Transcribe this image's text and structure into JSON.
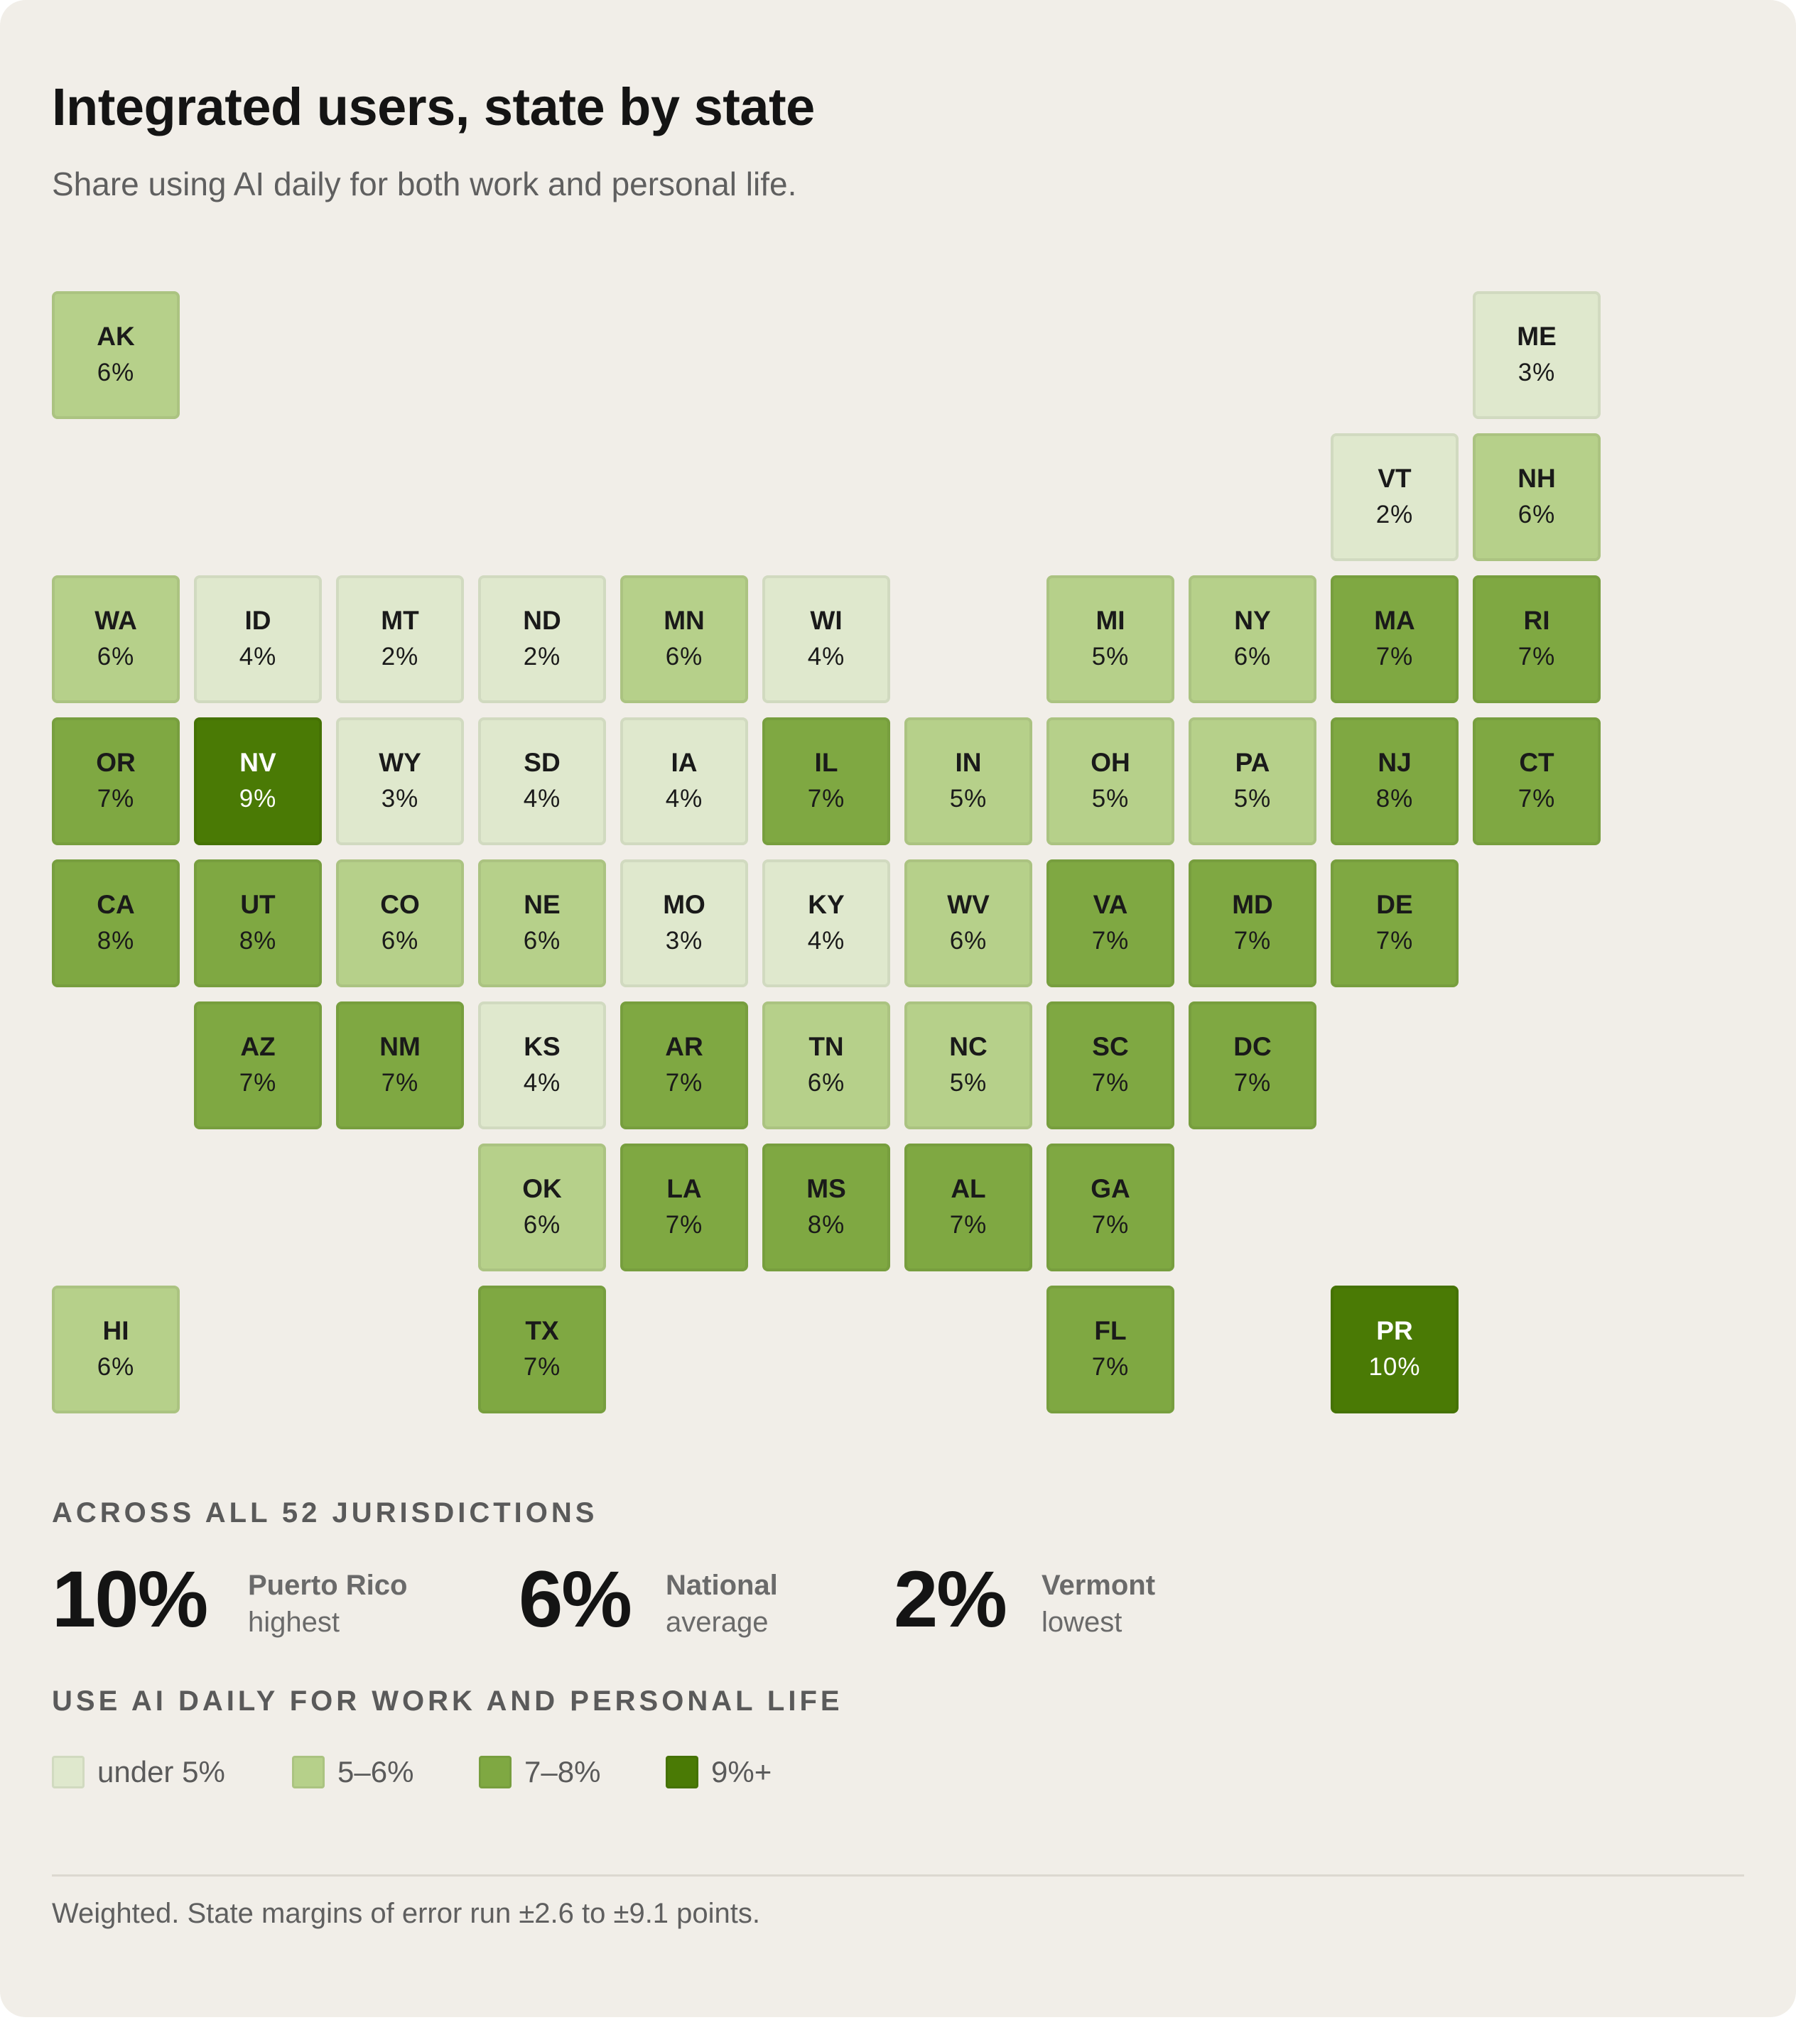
{
  "header": {
    "title": "Integrated users, state by state",
    "subtitle": "Share using AI daily for both work and personal life."
  },
  "colors": {
    "under5": "#dfe8cd",
    "5to6": "#b6d08a",
    "7to8": "#7fa842",
    "9plus": "#4a7a05",
    "text_dark": "#1a1a1a",
    "text_light": "#ffffff"
  },
  "chart_data": {
    "type": "tile-map",
    "title": "Integrated users, state by state",
    "subtitle": "Share using AI daily for both work and personal life.",
    "tiles": [
      {
        "abbr": "AK",
        "label": "6%",
        "value": 6,
        "row": 0,
        "col": 0
      },
      {
        "abbr": "ME",
        "label": "3%",
        "value": 3,
        "row": 0,
        "col": 10
      },
      {
        "abbr": "VT",
        "label": "2%",
        "value": 2,
        "row": 1,
        "col": 9
      },
      {
        "abbr": "NH",
        "label": "6%",
        "value": 6,
        "row": 1,
        "col": 10
      },
      {
        "abbr": "WA",
        "label": "6%",
        "value": 6,
        "row": 2,
        "col": 0
      },
      {
        "abbr": "ID",
        "label": "4%",
        "value": 4,
        "row": 2,
        "col": 1
      },
      {
        "abbr": "MT",
        "label": "2%",
        "value": 2,
        "row": 2,
        "col": 2
      },
      {
        "abbr": "ND",
        "label": "2%",
        "value": 2,
        "row": 2,
        "col": 3
      },
      {
        "abbr": "MN",
        "label": "6%",
        "value": 6,
        "row": 2,
        "col": 4
      },
      {
        "abbr": "WI",
        "label": "4%",
        "value": 4,
        "row": 2,
        "col": 5
      },
      {
        "abbr": "MI",
        "label": "5%",
        "value": 5,
        "row": 2,
        "col": 7
      },
      {
        "abbr": "NY",
        "label": "6%",
        "value": 6,
        "row": 2,
        "col": 8
      },
      {
        "abbr": "MA",
        "label": "7%",
        "value": 7,
        "row": 2,
        "col": 9
      },
      {
        "abbr": "RI",
        "label": "7%",
        "value": 7,
        "row": 2,
        "col": 10
      },
      {
        "abbr": "OR",
        "label": "7%",
        "value": 7,
        "row": 3,
        "col": 0
      },
      {
        "abbr": "NV",
        "label": "9%",
        "value": 9,
        "row": 3,
        "col": 1
      },
      {
        "abbr": "WY",
        "label": "3%",
        "value": 3,
        "row": 3,
        "col": 2
      },
      {
        "abbr": "SD",
        "label": "4%",
        "value": 4,
        "row": 3,
        "col": 3
      },
      {
        "abbr": "IA",
        "label": "4%",
        "value": 4,
        "row": 3,
        "col": 4
      },
      {
        "abbr": "IL",
        "label": "7%",
        "value": 7,
        "row": 3,
        "col": 5
      },
      {
        "abbr": "IN",
        "label": "5%",
        "value": 5,
        "row": 3,
        "col": 6
      },
      {
        "abbr": "OH",
        "label": "5%",
        "value": 5,
        "row": 3,
        "col": 7
      },
      {
        "abbr": "PA",
        "label": "5%",
        "value": 5,
        "row": 3,
        "col": 8
      },
      {
        "abbr": "NJ",
        "label": "8%",
        "value": 8,
        "row": 3,
        "col": 9
      },
      {
        "abbr": "CT",
        "label": "7%",
        "value": 7,
        "row": 3,
        "col": 10
      },
      {
        "abbr": "CA",
        "label": "8%",
        "value": 8,
        "row": 4,
        "col": 0
      },
      {
        "abbr": "UT",
        "label": "8%",
        "value": 8,
        "row": 4,
        "col": 1
      },
      {
        "abbr": "CO",
        "label": "6%",
        "value": 6,
        "row": 4,
        "col": 2
      },
      {
        "abbr": "NE",
        "label": "6%",
        "value": 6,
        "row": 4,
        "col": 3
      },
      {
        "abbr": "MO",
        "label": "3%",
        "value": 3,
        "row": 4,
        "col": 4
      },
      {
        "abbr": "KY",
        "label": "4%",
        "value": 4,
        "row": 4,
        "col": 5
      },
      {
        "abbr": "WV",
        "label": "6%",
        "value": 6,
        "row": 4,
        "col": 6
      },
      {
        "abbr": "VA",
        "label": "7%",
        "value": 7,
        "row": 4,
        "col": 7
      },
      {
        "abbr": "MD",
        "label": "7%",
        "value": 7,
        "row": 4,
        "col": 8
      },
      {
        "abbr": "DE",
        "label": "7%",
        "value": 7,
        "row": 4,
        "col": 9
      },
      {
        "abbr": "AZ",
        "label": "7%",
        "value": 7,
        "row": 5,
        "col": 1
      },
      {
        "abbr": "NM",
        "label": "7%",
        "value": 7,
        "row": 5,
        "col": 2
      },
      {
        "abbr": "KS",
        "label": "4%",
        "value": 4,
        "row": 5,
        "col": 3
      },
      {
        "abbr": "AR",
        "label": "7%",
        "value": 7,
        "row": 5,
        "col": 4
      },
      {
        "abbr": "TN",
        "label": "6%",
        "value": 6,
        "row": 5,
        "col": 5
      },
      {
        "abbr": "NC",
        "label": "5%",
        "value": 5,
        "row": 5,
        "col": 6
      },
      {
        "abbr": "SC",
        "label": "7%",
        "value": 7,
        "row": 5,
        "col": 7
      },
      {
        "abbr": "DC",
        "label": "7%",
        "value": 7,
        "row": 5,
        "col": 8
      },
      {
        "abbr": "OK",
        "label": "6%",
        "value": 6,
        "row": 6,
        "col": 3
      },
      {
        "abbr": "LA",
        "label": "7%",
        "value": 7,
        "row": 6,
        "col": 4
      },
      {
        "abbr": "MS",
        "label": "8%",
        "value": 8,
        "row": 6,
        "col": 5
      },
      {
        "abbr": "AL",
        "label": "7%",
        "value": 7,
        "row": 6,
        "col": 6
      },
      {
        "abbr": "GA",
        "label": "7%",
        "value": 7,
        "row": 6,
        "col": 7
      },
      {
        "abbr": "HI",
        "label": "6%",
        "value": 6,
        "row": 7,
        "col": 0
      },
      {
        "abbr": "TX",
        "label": "7%",
        "value": 7,
        "row": 7,
        "col": 3
      },
      {
        "abbr": "FL",
        "label": "7%",
        "value": 7,
        "row": 7,
        "col": 7
      },
      {
        "abbr": "PR",
        "label": "10%",
        "value": 10,
        "row": 7,
        "col": 9
      }
    ]
  },
  "summary": {
    "label": "ACROSS ALL 52 JURISDICTIONS",
    "stats": [
      {
        "value": "10%",
        "line1": "Puerto Rico",
        "line2": "highest"
      },
      {
        "value": "6%",
        "line1": "National",
        "line2": "average"
      },
      {
        "value": "2%",
        "line1": "Vermont",
        "line2": "lowest"
      }
    ]
  },
  "legend": {
    "label": "USE AI DAILY FOR WORK AND PERSONAL LIFE",
    "items": [
      {
        "text": "under 5%",
        "color": "#dfe8cd"
      },
      {
        "text": "5–6%",
        "color": "#b6d08a"
      },
      {
        "text": "7–8%",
        "color": "#7fa842"
      },
      {
        "text": "9%+",
        "color": "#4a7a05"
      }
    ]
  },
  "footnote": "Weighted. State margins of error run ±2.6 to ±9.1 points."
}
